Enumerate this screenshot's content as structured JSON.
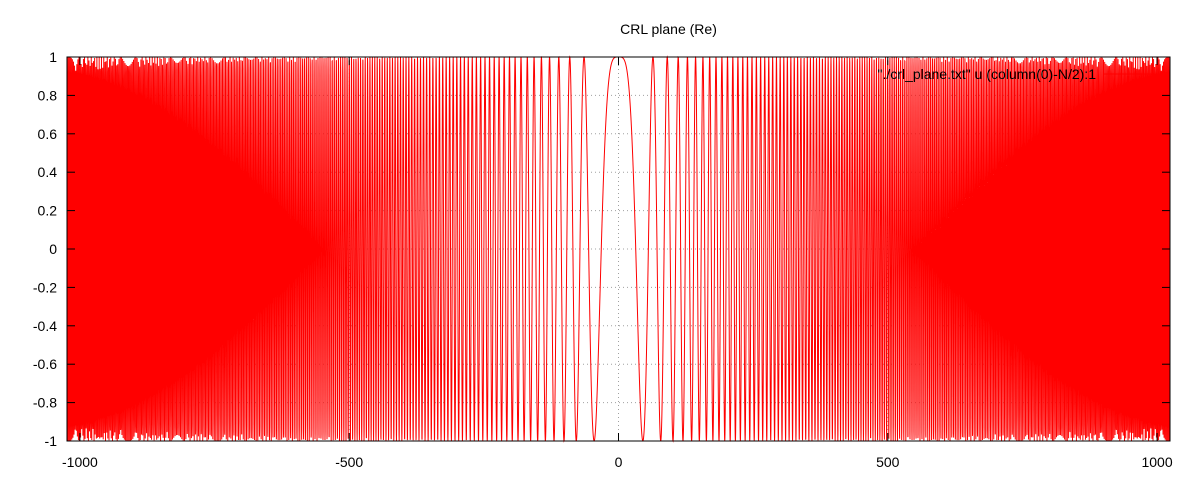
{
  "chart_data": {
    "type": "line",
    "title": "CRL plane (Re)",
    "xlabel": "",
    "ylabel": "",
    "xlim": [
      -1024,
      1024
    ],
    "ylim": [
      -1,
      1
    ],
    "x_ticks": [
      -1000,
      -500,
      0,
      500,
      1000
    ],
    "y_ticks": [
      1,
      0.8,
      0.6,
      0.4,
      0.2,
      0,
      -0.2,
      -0.4,
      -0.6,
      -0.8,
      -1
    ],
    "grid": true,
    "legend_position": "top-right",
    "series": [
      {
        "name": "\"./crl_plane.txt\" u (column(0)-N/2):1",
        "color": "#ff0000",
        "function": "cos(pi * x^2 / 2048)",
        "x_range": [
          -1024,
          1024
        ]
      }
    ]
  }
}
